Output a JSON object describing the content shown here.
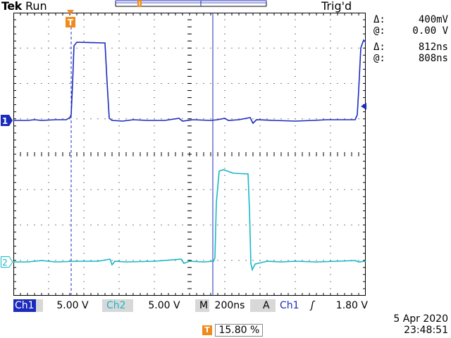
{
  "header": {
    "brand": "Tek",
    "acq_state": "Run",
    "trig_state": "Trig'd"
  },
  "markers": {
    "trigger_label": "T",
    "ch1_label": "1",
    "ch2_label": "2"
  },
  "colors": {
    "ch1": "#1b2bbd",
    "ch2": "#17b8c6",
    "trigger": "#f08a1c",
    "graticule": "#000000"
  },
  "readouts": {
    "voltage_delta_symbol": "Δ:",
    "voltage_delta": "400mV",
    "voltage_at_symbol": "@:",
    "voltage_at": "0.00 V",
    "time_delta_symbol": "Δ:",
    "time_delta": "812ns",
    "time_at_symbol": "@:",
    "time_at": "808ns"
  },
  "settings": {
    "ch1_label": "Ch1",
    "ch1_scale": "5.00 V",
    "ch2_label": "Ch2",
    "ch2_scale": "5.00 V",
    "time_mode": "M",
    "time_scale": "200ns",
    "trig_mode": "A",
    "trig_source": "Ch1",
    "trig_slope": "ʃ",
    "trig_level": "1.80 V"
  },
  "trigger_position": {
    "icon": "T",
    "value": "15.80 %"
  },
  "timestamp": {
    "date": "5 Apr  2020",
    "time": "23:48:51"
  }
}
